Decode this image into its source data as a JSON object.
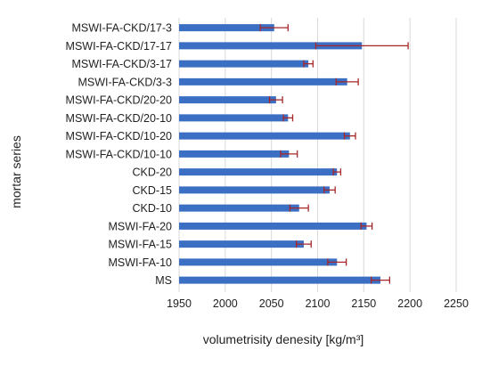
{
  "chart_data": {
    "type": "bar",
    "orientation": "horizontal",
    "title": "",
    "xlabel": "volumetrisity denesity [kg/m³]",
    "ylabel": "mortar series",
    "xlim": [
      1950,
      2250
    ],
    "xticks": [
      1950,
      2000,
      2050,
      2100,
      2150,
      2200,
      2250
    ],
    "grid": true,
    "legend": "none",
    "bar_color": "#3b6fc4",
    "error_color": "#a6272a",
    "categories": [
      "MSWI-FA-CKD/17-3",
      "MSWI-FA-CKD/17-17",
      "MSWI-FA-CKD/3-17",
      "MSWI-FA-CKD/3-3",
      "MSWI-FA-CKD/20-20",
      "MSWI-FA-CKD/20-10",
      "MSWI-FA-CKD/10-20",
      "MSWI-FA-CKD/10-10",
      "CKD-20",
      "CKD-15",
      "CKD-10",
      "MSWI-FA-20",
      "MSWI-FA-15",
      "MSWI-FA-10",
      "MS"
    ],
    "values": [
      2053,
      2148,
      2090,
      2132,
      2055,
      2068,
      2135,
      2069,
      2121,
      2113,
      2080,
      2153,
      2085,
      2121,
      2168
    ],
    "errors": [
      15,
      50,
      5,
      12,
      7,
      5,
      6,
      9,
      4,
      6,
      10,
      6,
      8,
      10,
      10
    ]
  }
}
